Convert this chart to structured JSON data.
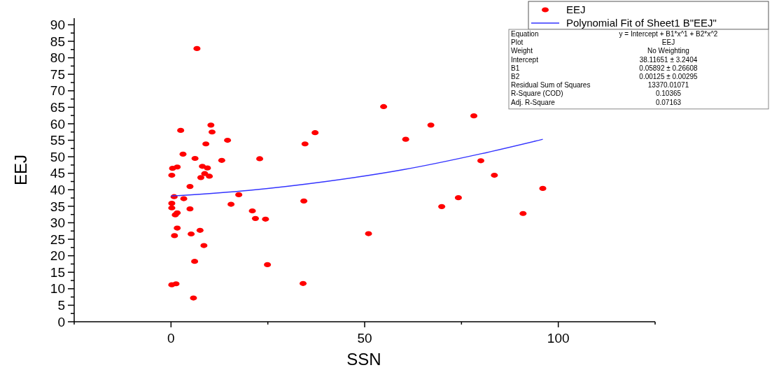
{
  "chart_data": {
    "type": "scatter",
    "xlabel": "SSN",
    "ylabel": "EEJ",
    "xlim": [
      -25,
      125
    ],
    "ylim": [
      0,
      92
    ],
    "xticks": [
      {
        "value": -25,
        "label": null
      },
      0,
      {
        "value": 25,
        "label": null
      },
      50,
      {
        "value": 75,
        "label": null
      },
      100,
      {
        "value": 125,
        "label": null
      }
    ],
    "yticks": [
      0,
      {
        "value": 2.5,
        "label": null
      },
      5,
      {
        "value": 7.5,
        "label": null
      },
      10,
      {
        "value": 12.5,
        "label": null
      },
      15,
      {
        "value": 17.5,
        "label": null
      },
      20,
      {
        "value": 22.5,
        "label": null
      },
      25,
      {
        "value": 27.5,
        "label": null
      },
      30,
      {
        "value": 32.5,
        "label": null
      },
      35,
      {
        "value": 37.5,
        "label": null
      },
      40,
      {
        "value": 42.5,
        "label": null
      },
      45,
      {
        "value": 47.5,
        "label": null
      },
      50,
      {
        "value": 52.5,
        "label": null
      },
      55,
      {
        "value": 57.5,
        "label": null
      },
      60,
      {
        "value": 62.5,
        "label": null
      },
      65,
      {
        "value": 67.5,
        "label": null
      },
      70,
      {
        "value": 72.5,
        "label": null
      },
      75,
      {
        "value": 77.5,
        "label": null
      },
      80,
      {
        "value": 82.5,
        "label": null
      },
      85,
      {
        "value": 87.5,
        "label": null
      },
      90
    ],
    "grid": false,
    "legend": "top right",
    "series": [
      {
        "name": "EEJ",
        "marker": "circle",
        "color": "#ff0000",
        "x": [
          6.7,
          10.3,
          2.5,
          10.6,
          9.0,
          14.6,
          3.1,
          6.2,
          13.1,
          1.6,
          0.4,
          8.1,
          9.4,
          0.2,
          8.7,
          7.7,
          9.9,
          4.9,
          0.8,
          3.3,
          17.5,
          15.5,
          0.2,
          0.2,
          4.9,
          1.6,
          1.1,
          1.6,
          7.5,
          0.9,
          5.2,
          8.5,
          6.1,
          0.2,
          1.3,
          5.8,
          54.9,
          78.2,
          67.1,
          37.2,
          34.6,
          60.6,
          22.9,
          80.0,
          83.5,
          96.0,
          74.2,
          69.9,
          90.9,
          21.0,
          21.8,
          24.4,
          34.3,
          51.0,
          24.9,
          34.1
        ],
        "values": [
          82.8,
          59.6,
          58.0,
          57.5,
          53.9,
          55.0,
          50.8,
          49.5,
          48.9,
          46.9,
          46.5,
          47.1,
          46.6,
          44.4,
          44.9,
          43.7,
          44.1,
          41.0,
          37.9,
          37.3,
          38.5,
          35.6,
          35.9,
          34.5,
          34.2,
          33.0,
          32.4,
          28.4,
          27.7,
          26.1,
          26.6,
          23.1,
          18.3,
          11.2,
          11.5,
          7.2,
          65.2,
          62.4,
          59.6,
          57.3,
          53.9,
          55.3,
          49.4,
          48.8,
          44.4,
          40.4,
          37.6,
          34.9,
          32.8,
          33.6,
          31.3,
          31.1,
          36.6,
          26.7,
          17.3,
          11.6
        ]
      },
      {
        "name": "Polynomial Fit of Sheet1 B\"EEJ\"",
        "type": "line",
        "marker": "none",
        "line_style": "solid",
        "color": "#3333ff",
        "x": [
          0,
          20,
          40,
          60,
          80,
          96
        ],
        "values": [
          38.1,
          39.8,
          42.5,
          46.1,
          50.9,
          55.3
        ]
      }
    ],
    "annotations": [
      "Equation",
      "y = Intercept + B1*x^1 + B2*x^2",
      "Plot",
      "EEJ",
      "Weight",
      "No Weighting",
      "Intercept",
      "38.11651 ± 3.2404",
      "B1",
      "0.05892 ± 0.26608",
      "B2",
      "0.00125 ± 0.00295",
      "Residual Sum of Squares",
      "13370.01071",
      "R-Square (COD)",
      "0.10365",
      "Adj. R-Square",
      "0.07163"
    ]
  }
}
